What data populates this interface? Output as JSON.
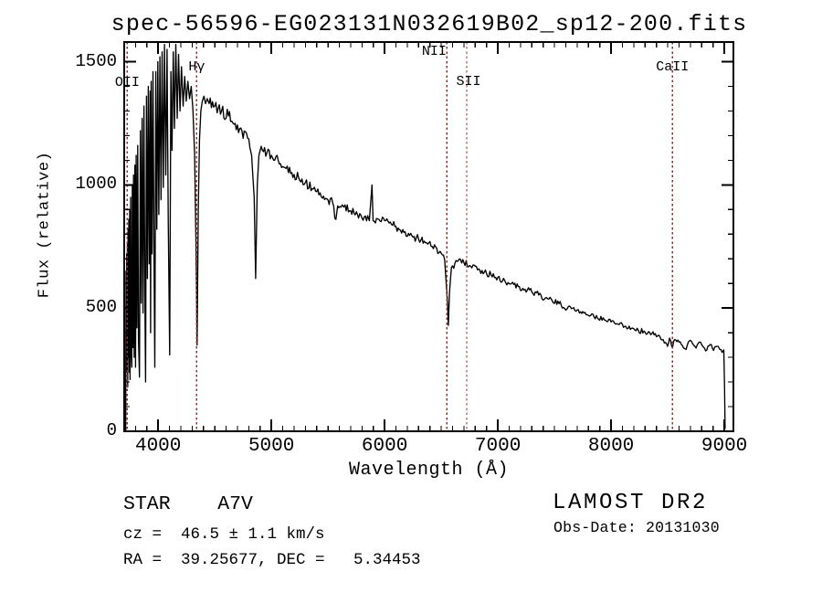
{
  "title": "spec-56596-EG023131N032619B02_sp12-200.fits",
  "chart_data": {
    "type": "line",
    "title": "spec-56596-EG023131N032619B02_sp12-200.fits",
    "xlabel": "Wavelength (Å)",
    "ylabel": "Flux (relative)",
    "xlim": [
      3700,
      9080
    ],
    "ylim": [
      0,
      1580
    ],
    "grid": false,
    "legend": "none",
    "xticks": [
      4000,
      5000,
      6000,
      7000,
      8000,
      9000
    ],
    "x_minor_step": 100,
    "yticks": [
      0,
      500,
      1000,
      1500
    ],
    "y_minor_step": 100,
    "line_color": "#000000",
    "annotation_line_color": "#8b3434",
    "spectral_lines": [
      {
        "label": "OII",
        "wavelength": 3727,
        "label_y": 91,
        "label_dx": 0
      },
      {
        "label": "Hγ",
        "wavelength": 4340,
        "label_y": 74,
        "label_dx": 0
      },
      {
        "label": "NII",
        "wavelength": 6550,
        "label_y": 57,
        "label_dx": -14
      },
      {
        "label": "SII",
        "wavelength": 6725,
        "label_y": 90,
        "label_dx": 2
      },
      {
        "label": "CaII",
        "wavelength": 8542,
        "label_y": 74,
        "label_dx": 0
      }
    ],
    "noise": {
      "seed": 20131030,
      "step": 10,
      "amplitude_by_wavelength": [
        [
          4450,
          26
        ],
        [
          4950,
          20
        ],
        [
          5600,
          17
        ],
        [
          6600,
          14
        ],
        [
          7600,
          11
        ],
        [
          8400,
          8
        ]
      ]
    },
    "spectrum_anchors": [
      [
        3713,
        0
      ],
      [
        3716,
        650
      ],
      [
        3719,
        300
      ],
      [
        3722,
        720
      ],
      [
        3725,
        240
      ],
      [
        3728,
        760
      ],
      [
        3731,
        180
      ],
      [
        3734,
        820
      ],
      [
        3737,
        300
      ],
      [
        3740,
        860
      ],
      [
        3744,
        240
      ],
      [
        3748,
        900
      ],
      [
        3752,
        210
      ],
      [
        3757,
        950
      ],
      [
        3762,
        320
      ],
      [
        3767,
        260
      ],
      [
        3772,
        1000
      ],
      [
        3777,
        340
      ],
      [
        3782,
        1040
      ],
      [
        3788,
        300
      ],
      [
        3794,
        1080
      ],
      [
        3800,
        260
      ],
      [
        3806,
        1120
      ],
      [
        3812,
        420
      ],
      [
        3819,
        1160
      ],
      [
        3826,
        380
      ],
      [
        3835,
        220
      ],
      [
        3843,
        1220
      ],
      [
        3850,
        520
      ],
      [
        3858,
        1270
      ],
      [
        3866,
        480
      ],
      [
        3874,
        1320
      ],
      [
        3882,
        560
      ],
      [
        3889,
        200
      ],
      [
        3897,
        1360
      ],
      [
        3905,
        620
      ],
      [
        3913,
        1400
      ],
      [
        3921,
        680
      ],
      [
        3929,
        1380
      ],
      [
        3933,
        400
      ],
      [
        3938,
        1420
      ],
      [
        3946,
        720
      ],
      [
        3954,
        1460
      ],
      [
        3962,
        780
      ],
      [
        3970,
        260
      ],
      [
        3979,
        1460
      ],
      [
        3988,
        820
      ],
      [
        3997,
        1500
      ],
      [
        4006,
        880
      ],
      [
        4015,
        1520
      ],
      [
        4025,
        940
      ],
      [
        4035,
        1540
      ],
      [
        4045,
        990
      ],
      [
        4056,
        1570
      ],
      [
        4067,
        1040
      ],
      [
        4078,
        1550
      ],
      [
        4089,
        860
      ],
      [
        4102,
        310
      ],
      [
        4112,
        1460
      ],
      [
        4122,
        1140
      ],
      [
        4133,
        1540
      ],
      [
        4144,
        1230
      ],
      [
        4156,
        1570
      ],
      [
        4168,
        1270
      ],
      [
        4180,
        1530
      ],
      [
        4193,
        1300
      ],
      [
        4206,
        1480
      ],
      [
        4220,
        1320
      ],
      [
        4234,
        1440
      ],
      [
        4248,
        1340
      ],
      [
        4262,
        1420
      ],
      [
        4277,
        1350
      ],
      [
        4292,
        1400
      ],
      [
        4307,
        1300
      ],
      [
        4322,
        1120
      ],
      [
        4334,
        750
      ],
      [
        4344,
        350
      ],
      [
        4354,
        900
      ],
      [
        4365,
        1180
      ],
      [
        4377,
        1300
      ],
      [
        4390,
        1340
      ],
      [
        4404,
        1360
      ],
      [
        4418,
        1330
      ],
      [
        4433,
        1350
      ],
      [
        4450,
        1330
      ],
      [
        4500,
        1320
      ],
      [
        4560,
        1300
      ],
      [
        4620,
        1280
      ],
      [
        4680,
        1250
      ],
      [
        4740,
        1220
      ],
      [
        4790,
        1190
      ],
      [
        4825,
        1120
      ],
      [
        4848,
        950
      ],
      [
        4861,
        620
      ],
      [
        4875,
        1000
      ],
      [
        4890,
        1120
      ],
      [
        4920,
        1140
      ],
      [
        4960,
        1130
      ],
      [
        5000,
        1120
      ],
      [
        5060,
        1100
      ],
      [
        5120,
        1070
      ],
      [
        5180,
        1050
      ],
      [
        5240,
        1030
      ],
      [
        5300,
        1010
      ],
      [
        5360,
        985
      ],
      [
        5420,
        960
      ],
      [
        5480,
        945
      ],
      [
        5540,
        930
      ],
      [
        5570,
        860
      ],
      [
        5585,
        915
      ],
      [
        5640,
        910
      ],
      [
        5700,
        895
      ],
      [
        5760,
        880
      ],
      [
        5820,
        870
      ],
      [
        5865,
        855
      ],
      [
        5888,
        1000
      ],
      [
        5898,
        855
      ],
      [
        5950,
        860
      ],
      [
        6000,
        855
      ],
      [
        6060,
        840
      ],
      [
        6120,
        825
      ],
      [
        6180,
        810
      ],
      [
        6240,
        795
      ],
      [
        6300,
        780
      ],
      [
        6360,
        765
      ],
      [
        6420,
        750
      ],
      [
        6480,
        725
      ],
      [
        6530,
        695
      ],
      [
        6555,
        520
      ],
      [
        6563,
        430
      ],
      [
        6572,
        560
      ],
      [
        6590,
        665
      ],
      [
        6640,
        690
      ],
      [
        6700,
        685
      ],
      [
        6760,
        670
      ],
      [
        6820,
        655
      ],
      [
        6880,
        645
      ],
      [
        6940,
        635
      ],
      [
        7000,
        625
      ],
      [
        7060,
        612
      ],
      [
        7120,
        600
      ],
      [
        7180,
        588
      ],
      [
        7240,
        576
      ],
      [
        7300,
        565
      ],
      [
        7360,
        553
      ],
      [
        7420,
        542
      ],
      [
        7480,
        530
      ],
      [
        7540,
        518
      ],
      [
        7590,
        498
      ],
      [
        7640,
        505
      ],
      [
        7700,
        492
      ],
      [
        7760,
        480
      ],
      [
        7820,
        470
      ],
      [
        7880,
        460
      ],
      [
        7940,
        452
      ],
      [
        8000,
        444
      ],
      [
        8060,
        435
      ],
      [
        8120,
        426
      ],
      [
        8180,
        418
      ],
      [
        8240,
        410
      ],
      [
        8300,
        402
      ],
      [
        8360,
        396
      ],
      [
        8420,
        390
      ],
      [
        8460,
        372
      ],
      [
        8498,
        345
      ],
      [
        8515,
        378
      ],
      [
        8542,
        338
      ],
      [
        8560,
        372
      ],
      [
        8600,
        362
      ],
      [
        8630,
        348
      ],
      [
        8662,
        332
      ],
      [
        8690,
        366
      ],
      [
        8720,
        355
      ],
      [
        8750,
        338
      ],
      [
        8780,
        362
      ],
      [
        8815,
        342
      ],
      [
        8845,
        330
      ],
      [
        8875,
        352
      ],
      [
        8905,
        328
      ],
      [
        8935,
        345
      ],
      [
        8960,
        332
      ],
      [
        8980,
        320
      ],
      [
        8995,
        330
      ],
      [
        9002,
        180
      ],
      [
        9007,
        10
      ]
    ]
  },
  "footer": {
    "class_line": "STAR    A7V",
    "cz_line": "cz =  46.5 ± 1.1 km/s",
    "radec_line": "RA =  39.25677, DEC =   5.34453",
    "survey": "LAMOST DR2",
    "obs_date_line": "Obs-Date: 20131030"
  }
}
